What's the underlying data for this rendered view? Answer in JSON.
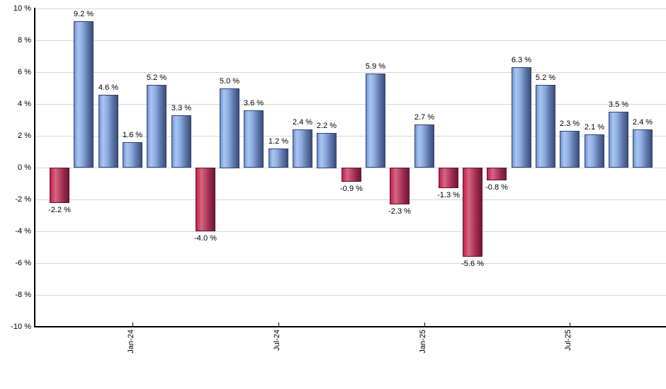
{
  "chart_data": {
    "type": "bar",
    "title": "",
    "xlabel": "",
    "ylabel": "",
    "ylim": [
      -10,
      10
    ],
    "grid": true,
    "legend": false,
    "bars": [
      {
        "value": -2.2,
        "label": "-2.2 %"
      },
      {
        "value": 9.2,
        "label": "9.2 %"
      },
      {
        "value": 4.6,
        "label": "4.6 %"
      },
      {
        "value": 1.6,
        "label": "1.6 %"
      },
      {
        "value": 5.2,
        "label": "5.2 %"
      },
      {
        "value": 3.3,
        "label": "3.3 %"
      },
      {
        "value": -4.0,
        "label": "-4.0 %"
      },
      {
        "value": 5.0,
        "label": "5.0 %"
      },
      {
        "value": 3.6,
        "label": "3.6 %"
      },
      {
        "value": 1.2,
        "label": "1.2 %"
      },
      {
        "value": 2.4,
        "label": "2.4 %"
      },
      {
        "value": 2.2,
        "label": "2.2 %"
      },
      {
        "value": -0.9,
        "label": "-0.9 %"
      },
      {
        "value": 5.9,
        "label": "5.9 %"
      },
      {
        "value": -2.3,
        "label": "-2.3 %"
      },
      {
        "value": 2.7,
        "label": "2.7 %"
      },
      {
        "value": -1.3,
        "label": "-1.3 %"
      },
      {
        "value": -5.6,
        "label": "-5.6 %"
      },
      {
        "value": -0.8,
        "label": "-0.8 %"
      },
      {
        "value": 6.3,
        "label": "6.3 %"
      },
      {
        "value": 5.2,
        "label": "5.2 %"
      },
      {
        "value": 2.3,
        "label": "2.3 %"
      },
      {
        "value": 2.1,
        "label": "2.1 %"
      },
      {
        "value": 3.5,
        "label": "3.5 %"
      },
      {
        "value": 2.4,
        "label": "2.4 %"
      }
    ],
    "x_axis": {
      "ticks": [
        {
          "index": 3,
          "label": "Jan-24"
        },
        {
          "index": 9,
          "label": "Jul-24"
        },
        {
          "index": 15,
          "label": "Jan-25"
        },
        {
          "index": 21,
          "label": "Jul-25"
        }
      ]
    },
    "y_axis": {
      "ticks": [
        {
          "value": 10,
          "label": "10 %"
        },
        {
          "value": 8,
          "label": "8 %"
        },
        {
          "value": 6,
          "label": "6 %"
        },
        {
          "value": 4,
          "label": "4 %"
        },
        {
          "value": 2,
          "label": "2 %"
        },
        {
          "value": 0,
          "label": "0 %"
        },
        {
          "value": -2,
          "label": "-2 %"
        },
        {
          "value": -4,
          "label": "-4 %"
        },
        {
          "value": -6,
          "label": "-6 %"
        },
        {
          "value": -8,
          "label": "-8 %"
        },
        {
          "value": -10,
          "label": "-10 %"
        }
      ]
    },
    "colors": {
      "positive_bar": "#6e93d6",
      "positive_bar_highlight": "#a9c5f0",
      "positive_bar_shadow": "#3c4e7a",
      "negative_bar": "#c41e50",
      "negative_bar_highlight": "#d4677f",
      "negative_bar_shadow": "#701936",
      "gridline": "#d6d6d6",
      "axis": "#000000",
      "label_text": "#000000",
      "background": "#ffffff"
    }
  }
}
